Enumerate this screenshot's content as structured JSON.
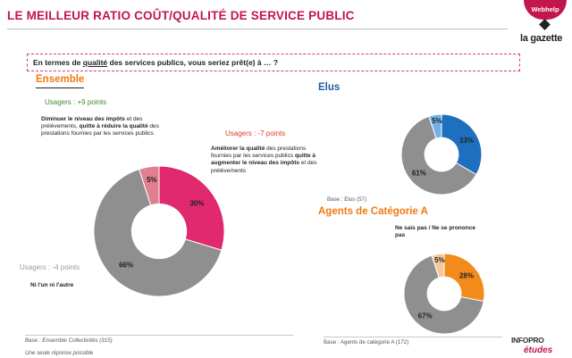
{
  "header": {
    "title": "LE MEILLEUR RATIO COÛT/QUALITÉ DE SERVICE PUBLIC",
    "brand_top": "Webhelp",
    "brand_bottom": "la gazette"
  },
  "question": {
    "prefix": "En termes de ",
    "underlined": "qualité",
    "suffix": " des services publics, vous seriez prêt(e) à … ?"
  },
  "ensemble": {
    "title": "Ensemble",
    "usagers_plus": "Usagers : +9 points",
    "usagers_minus": "Usagers : -7 points",
    "usagers_neutral": "Usagers : -4 points",
    "desc_decrease": {
      "bold1": "Diminuer le niveau des impôts",
      "plain1": " et des prélèvements, ",
      "bold2": "quitte à réduire la qualité",
      "plain2": " des prestations fournies par les services publics"
    },
    "desc_increase": {
      "bold1": "Améliorer la qualité",
      "plain1": " des prestations fournies par les services publics ",
      "bold2": "quitte à augmenter le niveau des impôts",
      "plain2": " et des prélèvements"
    },
    "neutral_label": "Ni l'un ni l'autre",
    "base": "Base : Ensemble Collectivités (315)"
  },
  "elus": {
    "title": "Elus",
    "base": "Base : Elus (57)"
  },
  "agents": {
    "title": "Agents de Catégorie A",
    "nsp_label": "Ne sais pas / Ne se prononce pas",
    "base": "Base : Agents de catégorie A (172)"
  },
  "footer": {
    "note": "Une seule réponse possible",
    "brand_top": "INFOPRO",
    "brand_bottom": "études"
  },
  "colors": {
    "ensemble_improve": "#e0296f",
    "elus_improve": "#1f6fbf",
    "agents_improve": "#f28a1c",
    "neither": "#8f8f8f",
    "dont_know_ensemble": "#e0808f",
    "dont_know_elus": "#6fb3e6",
    "dont_know_agents": "#f6c79a"
  },
  "chart_data": [
    {
      "type": "pie",
      "title": "Ensemble",
      "labels": [
        "Améliorer la qualité",
        "Ni l'un ni l'autre",
        "Ne sais pas / Ne se prononce pas"
      ],
      "values": [
        30,
        66,
        5
      ],
      "value_labels": [
        "30%",
        "66%",
        "5%"
      ]
    },
    {
      "type": "pie",
      "title": "Elus",
      "labels": [
        "Améliorer la qualité",
        "Ni l'un ni l'autre",
        "Ne sais pas / Ne se prononce pas"
      ],
      "values": [
        33,
        61,
        5
      ],
      "value_labels": [
        "33%",
        "61%",
        "5%"
      ]
    },
    {
      "type": "pie",
      "title": "Agents de Catégorie A",
      "labels": [
        "Améliorer la qualité",
        "Ni l'un ni l'autre",
        "Ne sais pas / Ne se prononce pas"
      ],
      "values": [
        28,
        67,
        5
      ],
      "value_labels": [
        "28%",
        "67%",
        "5%"
      ]
    }
  ]
}
